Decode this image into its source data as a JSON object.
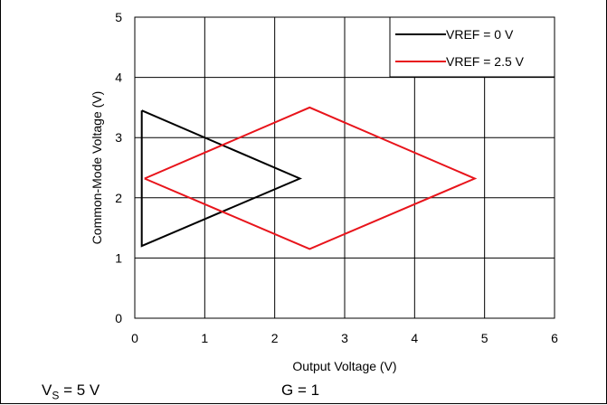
{
  "chart_data": {
    "type": "line",
    "xlabel": "Output Voltage (V)",
    "ylabel": "Common-Mode Voltage (V)",
    "xlim": [
      0,
      6
    ],
    "ylim": [
      0,
      5
    ],
    "xticks": [
      "0",
      "1",
      "2",
      "3",
      "4",
      "5",
      "6"
    ],
    "yticks": [
      "0",
      "1",
      "2",
      "3",
      "4",
      "5"
    ],
    "grid": true,
    "legend_position": "top-right",
    "series": [
      {
        "name": "VREF = 0 V",
        "color": "#000000",
        "x": [
          0.1,
          0.1,
          2.36,
          0.1
        ],
        "y": [
          3.45,
          1.2,
          2.32,
          3.45
        ]
      },
      {
        "name": "VREF = 2.5 V",
        "color": "#e8141b",
        "x": [
          0.14,
          2.5,
          4.86,
          2.5,
          0.14
        ],
        "y": [
          2.32,
          3.5,
          2.32,
          1.15,
          2.32
        ]
      }
    ]
  },
  "conditions": {
    "vs_label": "V",
    "vs_sub": "S",
    "vs_value": " = 5 V",
    "gain": "G = 1"
  }
}
